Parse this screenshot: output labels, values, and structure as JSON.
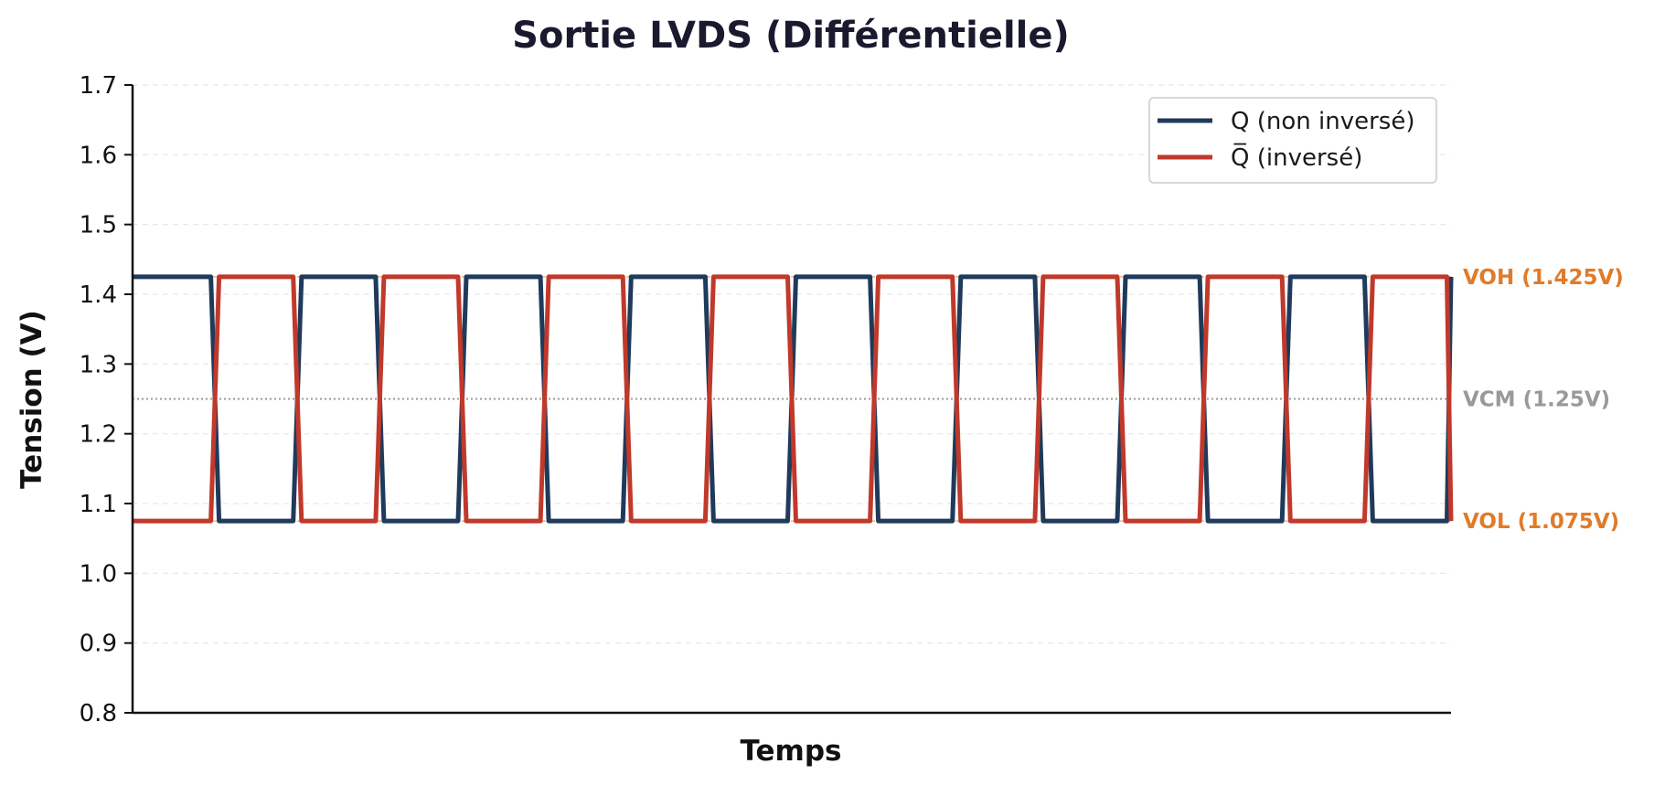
{
  "chart_data": {
    "type": "line",
    "title": "Sortie LVDS (Différentielle)",
    "xlabel": "Temps",
    "ylabel": "Tension (V)",
    "ylim": [
      0.8,
      1.7
    ],
    "yticks": [
      0.8,
      0.9,
      1.0,
      1.1,
      1.2,
      1.3,
      1.4,
      1.5,
      1.6,
      1.7
    ],
    "ytick_labels": [
      "0.8",
      "0.9",
      "1.0",
      "1.1",
      "1.2",
      "1.3",
      "1.4",
      "1.5",
      "1.6",
      "1.7"
    ],
    "xlim": [
      0,
      16
    ],
    "grid": true,
    "legend_position": "top-right",
    "transition_width": 0.1,
    "series": [
      {
        "name": "Q (non inversé)",
        "color": "#1f3a5a",
        "high": 1.425,
        "low": 1.075,
        "starts_high": true
      },
      {
        "name": "Q̅ (inversé)",
        "color": "#c0392b",
        "high": 1.425,
        "low": 1.075,
        "starts_high": false
      }
    ],
    "reference_lines": [
      {
        "label": "VOH (1.425V)",
        "value": 1.425,
        "color": "#e07b2a"
      },
      {
        "label": "VCM (1.25V)",
        "value": 1.25,
        "color": "#999999"
      },
      {
        "label": "VOL (1.075V)",
        "value": 1.075,
        "color": "#e07b2a"
      }
    ]
  }
}
